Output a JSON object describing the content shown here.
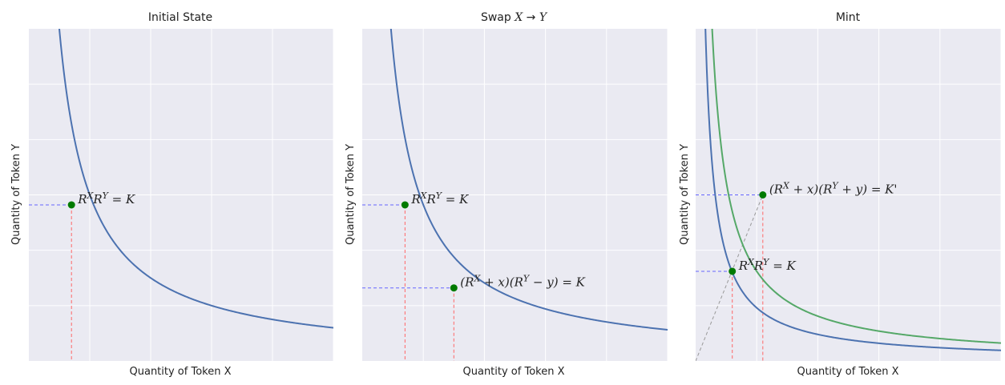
{
  "colors": {
    "panel_bg": "#eaeaf2",
    "grid": "#ffffff",
    "curve": "#4c72b0",
    "curve_new": "#55a868",
    "point": "#007a00",
    "horiz_guide": "#6666ff",
    "vert_guide": "#ff6666",
    "diag_guide": "#999999"
  },
  "chart_data": [
    {
      "type": "line",
      "title": "Initial State",
      "xlabel": "Quantity of Token X",
      "ylabel": "Quantity of Token Y",
      "xlim": [
        0,
        10
      ],
      "ylim": [
        0,
        10
      ],
      "grid": true,
      "series": [
        {
          "k": 10,
          "color_key": "curve"
        }
      ],
      "points": [
        {
          "x": 1.4,
          "y": 4.7,
          "label": "R^XR^Y = K",
          "label_pos": "right"
        }
      ]
    },
    {
      "type": "line",
      "title": "Swap X → Y",
      "xlabel": "Quantity of Token X",
      "ylabel": "Quantity of Token Y",
      "xlim": [
        0,
        10
      ],
      "ylim": [
        0,
        10
      ],
      "grid": true,
      "series": [
        {
          "k": 9.4,
          "color_key": "curve"
        }
      ],
      "points": [
        {
          "x": 1.4,
          "y": 4.7,
          "label": "R^XR^Y = K",
          "label_pos": "right"
        },
        {
          "x": 3.0,
          "y": 2.2,
          "label": "(R^X + x)(R^Y − y) = K",
          "label_pos": "right"
        }
      ]
    },
    {
      "type": "line",
      "title": "Mint",
      "xlabel": "Quantity of Token X",
      "ylabel": "Quantity of Token Y",
      "xlim": [
        0,
        10
      ],
      "ylim": [
        0,
        10
      ],
      "grid": true,
      "series": [
        {
          "k": 3.2,
          "color_key": "curve"
        },
        {
          "k": 5.4,
          "color_key": "curve_new"
        }
      ],
      "points": [
        {
          "x": 1.2,
          "y": 2.7,
          "label": "R^XR^Y = K",
          "label_pos": "right"
        },
        {
          "x": 2.2,
          "y": 5.0,
          "label": "(R^X + x)(R^Y + y) = K'",
          "label_pos": "right"
        }
      ],
      "diagonal": true
    }
  ]
}
